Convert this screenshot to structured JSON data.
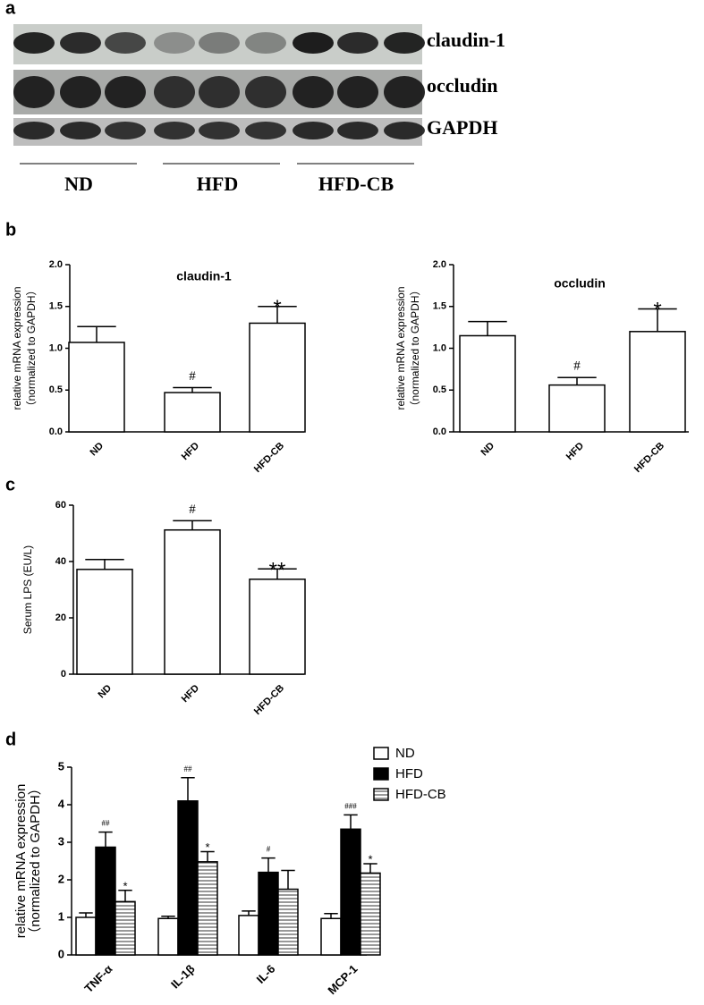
{
  "panel_labels": [
    "a",
    "b",
    "c",
    "d"
  ],
  "blot": {
    "bands": [
      "claudin-1",
      "occludin",
      "GAPDH"
    ],
    "groups": [
      "ND",
      "HFD",
      "HFD-CB"
    ]
  },
  "chart_data": [
    {
      "type": "bar",
      "title": "claudin-1",
      "y_label": [
        "relative mRNA expression",
        "（normalized to GAPDH）"
      ],
      "categories": [
        "ND",
        "HFD",
        "HFD-CB"
      ],
      "values": [
        1.07,
        0.47,
        1.3
      ],
      "errors": [
        0.19,
        0.06,
        0.2
      ],
      "annotations": [
        null,
        "#",
        "*"
      ],
      "color": "#ffffff",
      "ylim": [
        0,
        2
      ],
      "yticks": [
        {
          "value": 0,
          "label": "0.0"
        },
        {
          "value": 0.5,
          "label": "0.5"
        },
        {
          "value": 1,
          "label": "1.0"
        },
        {
          "value": 1.5,
          "label": "1.5"
        },
        {
          "value": 2,
          "label": "2.0"
        }
      ]
    },
    {
      "type": "bar",
      "title": "occludin",
      "y_label": [
        "relative mRNA expression",
        "（normalized to GAPDH）"
      ],
      "categories": [
        "ND",
        "HFD",
        "HFD-CB"
      ],
      "values": [
        1.15,
        0.56,
        1.2
      ],
      "errors": [
        0.17,
        0.09,
        0.27
      ],
      "annotations": [
        null,
        "#",
        "*"
      ],
      "color": "#ffffff",
      "ylim": [
        0,
        2
      ],
      "yticks": [
        {
          "value": 0,
          "label": "0.0"
        },
        {
          "value": 0.5,
          "label": "0.5"
        },
        {
          "value": 1,
          "label": "1.0"
        },
        {
          "value": 1.5,
          "label": "1.5"
        },
        {
          "value": 2,
          "label": "2.0"
        }
      ]
    },
    {
      "type": "bar",
      "y_label": [
        "Serum LPS (EU/L)"
      ],
      "categories": [
        "ND",
        "HFD",
        "HFD-CB"
      ],
      "values": [
        37.2,
        51.2,
        33.7
      ],
      "errors": [
        3.5,
        3.3,
        3.7
      ],
      "annotations": [
        null,
        "#",
        "**"
      ],
      "color": "#ffffff",
      "ylim": [
        0,
        60
      ],
      "yticks": [
        0,
        20,
        40,
        60
      ]
    },
    {
      "type": "bar",
      "y_label": [
        "relative mRNA expression",
        "（normalized to GAPDH）"
      ],
      "categories": [
        "TNF-α",
        "IL-1β",
        "IL-6",
        "MCP-1"
      ],
      "series": [
        {
          "name": "ND",
          "color": "#ffffff",
          "values": [
            1.0,
            0.97,
            1.05,
            0.97
          ],
          "errors": [
            0.12,
            0.06,
            0.12,
            0.13
          ]
        },
        {
          "name": "HFD",
          "color": "#000000",
          "values": [
            2.87,
            4.1,
            2.2,
            3.35
          ],
          "errors": [
            0.4,
            0.62,
            0.38,
            0.38
          ],
          "annotations": [
            "##",
            "##",
            "#",
            "###"
          ]
        },
        {
          "name": "HFD-CB",
          "color": "#c0c0c0",
          "hatch": true,
          "values": [
            1.42,
            2.48,
            1.75,
            2.18
          ],
          "errors": [
            0.3,
            0.27,
            0.5,
            0.25
          ],
          "annotations": [
            "*",
            "*",
            null,
            "*"
          ]
        }
      ],
      "ylim": [
        0,
        5
      ],
      "yticks": [
        0,
        1,
        2,
        3,
        4,
        5
      ]
    }
  ]
}
